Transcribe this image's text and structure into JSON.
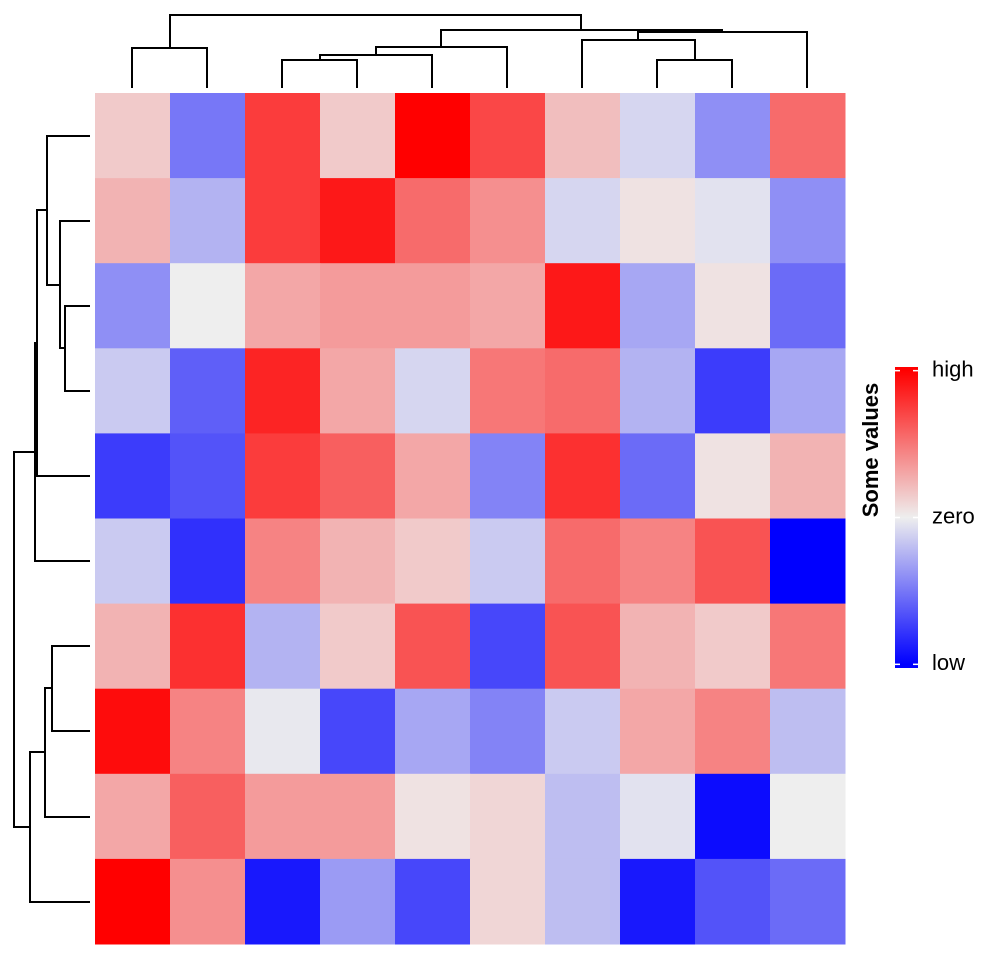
{
  "chart_data": {
    "type": "heatmap",
    "values": [
      [
        0.3,
        -1.0,
        1.5,
        0.3,
        2.2,
        1.4,
        0.4,
        -0.2,
        -0.8,
        1.1
      ],
      [
        0.5,
        -0.5,
        1.5,
        1.8,
        1.1,
        0.8,
        -0.2,
        0.1,
        -0.1,
        -0.8
      ],
      [
        -0.8,
        0.0,
        0.6,
        0.7,
        0.7,
        0.6,
        1.8,
        -0.6,
        0.1,
        -1.1
      ],
      [
        -0.3,
        -1.2,
        1.7,
        0.6,
        -0.2,
        1.0,
        1.1,
        -0.5,
        -1.5,
        -0.6
      ],
      [
        -1.5,
        -1.3,
        1.5,
        1.2,
        0.6,
        -0.9,
        1.6,
        -1.1,
        0.1,
        0.5
      ],
      [
        -0.3,
        -1.6,
        0.9,
        0.5,
        0.3,
        -0.3,
        1.1,
        0.9,
        1.3,
        -2.3
      ],
      [
        0.5,
        1.6,
        -0.5,
        0.3,
        1.3,
        -1.4,
        1.3,
        0.5,
        0.3,
        1.0
      ],
      [
        1.9,
        0.9,
        -0.05,
        -1.4,
        -0.6,
        -0.9,
        -0.3,
        0.6,
        0.9,
        -0.4
      ],
      [
        0.6,
        1.2,
        0.7,
        0.7,
        0.1,
        0.2,
        -0.4,
        -0.1,
        -1.9,
        0.0
      ],
      [
        2.2,
        0.8,
        -1.8,
        -0.7,
        -1.4,
        0.2,
        -0.4,
        -1.8,
        -1.3,
        -1.1
      ]
    ],
    "legend_title": "Some values",
    "color_stops": [
      {
        "value": -2,
        "color": "#0000ff"
      },
      {
        "value": 0,
        "color": "#eeeeee"
      },
      {
        "value": 2,
        "color": "#ff0000"
      }
    ],
    "legend_lim": [
      -2.05,
      2.05
    ],
    "legend_ticks": [
      {
        "value": 2,
        "label": "high"
      },
      {
        "value": 0,
        "label": "zero"
      },
      {
        "value": -2,
        "label": "low"
      }
    ]
  }
}
